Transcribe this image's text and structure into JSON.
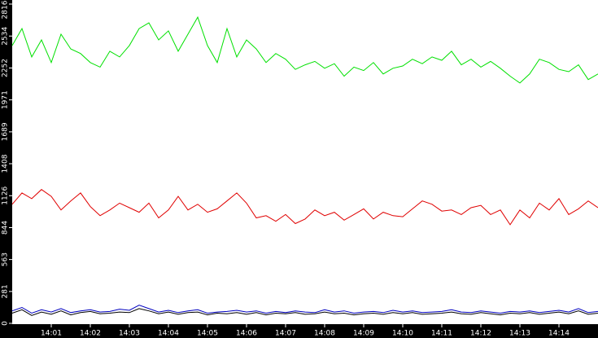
{
  "chart_data": {
    "type": "line",
    "x": [
      0,
      0.25,
      0.5,
      0.75,
      1,
      1.25,
      1.5,
      1.75,
      2,
      2.25,
      2.5,
      2.75,
      3,
      3.25,
      3.5,
      3.75,
      4,
      4.25,
      4.5,
      4.75,
      5,
      5.25,
      5.5,
      5.75,
      6,
      6.25,
      6.5,
      6.75,
      7,
      7.25,
      7.5,
      7.75,
      8,
      8.25,
      8.5,
      8.75,
      9,
      9.25,
      9.5,
      9.75,
      10,
      10.25,
      10.5,
      10.75,
      11,
      11.25,
      11.5,
      11.75,
      12,
      12.25,
      12.5,
      12.75,
      13,
      13.25,
      13.5,
      13.75,
      14,
      14.25,
      14.5,
      14.75,
      15
    ],
    "series": [
      {
        "color": "#00e000",
        "values": [
          2450,
          2600,
          2350,
          2500,
          2300,
          2550,
          2420,
          2380,
          2300,
          2260,
          2400,
          2350,
          2450,
          2600,
          2650,
          2500,
          2580,
          2400,
          2550,
          2700,
          2450,
          2300,
          2600,
          2350,
          2500,
          2420,
          2300,
          2380,
          2330,
          2240,
          2280,
          2310,
          2250,
          2290,
          2180,
          2260,
          2230,
          2300,
          2200,
          2250,
          2270,
          2330,
          2290,
          2350,
          2320,
          2400,
          2280,
          2330,
          2260,
          2310,
          2250,
          2180,
          2120,
          2200,
          2330,
          2300,
          2240,
          2220,
          2280,
          2150,
          2200
        ]
      },
      {
        "color": "#e00000",
        "values": [
          1050,
          1150,
          1100,
          1180,
          1120,
          1000,
          1080,
          1150,
          1030,
          950,
          1000,
          1060,
          1020,
          980,
          1060,
          930,
          1000,
          1120,
          1000,
          1050,
          980,
          1010,
          1080,
          1150,
          1060,
          930,
          950,
          900,
          960,
          880,
          920,
          1000,
          950,
          980,
          910,
          960,
          1010,
          920,
          980,
          950,
          940,
          1010,
          1080,
          1050,
          990,
          1000,
          960,
          1020,
          1040,
          960,
          1000,
          870,
          1000,
          930,
          1060,
          1000,
          1100,
          960,
          1010,
          1080,
          1020
        ]
      },
      {
        "color": "#0000c0",
        "values": [
          110,
          140,
          90,
          120,
          100,
          130,
          95,
          110,
          120,
          100,
          105,
          125,
          115,
          160,
          130,
          100,
          115,
          95,
          110,
          120,
          90,
          100,
          105,
          115,
          100,
          110,
          90,
          105,
          95,
          110,
          100,
          95,
          120,
          100,
          110,
          90,
          100,
          105,
          95,
          115,
          100,
          110,
          95,
          100,
          105,
          120,
          100,
          95,
          110,
          100,
          90,
          105,
          100,
          110,
          95,
          105,
          115,
          100,
          130,
          95,
          105
        ]
      },
      {
        "color": "#000000",
        "values": [
          90,
          120,
          70,
          100,
          80,
          110,
          75,
          95,
          105,
          85,
          90,
          100,
          95,
          130,
          110,
          85,
          100,
          80,
          95,
          100,
          75,
          90,
          85,
          95,
          80,
          95,
          75,
          90,
          85,
          95,
          80,
          85,
          100,
          85,
          90,
          75,
          85,
          90,
          80,
          95,
          85,
          95,
          80,
          85,
          90,
          100,
          85,
          80,
          95,
          85,
          75,
          90,
          85,
          95,
          80,
          90,
          100,
          85,
          110,
          80,
          90
        ]
      }
    ],
    "xlim": [
      0,
      15
    ],
    "xticks": [
      {
        "value": 1,
        "label": "14:01"
      },
      {
        "value": 2,
        "label": "14:02"
      },
      {
        "value": 3,
        "label": "14:03"
      },
      {
        "value": 4,
        "label": "14:04"
      },
      {
        "value": 5,
        "label": "14:05"
      },
      {
        "value": 6,
        "label": "14:06"
      },
      {
        "value": 7,
        "label": "14:07"
      },
      {
        "value": 8,
        "label": "14:08"
      },
      {
        "value": 9,
        "label": "14:09"
      },
      {
        "value": 10,
        "label": "14:10"
      },
      {
        "value": 11,
        "label": "14:11"
      },
      {
        "value": 12,
        "label": "14:12"
      },
      {
        "value": 13,
        "label": "14:13"
      },
      {
        "value": 14,
        "label": "14:14"
      }
    ],
    "ylim": [
      0,
      2816
    ],
    "yticks": [
      0,
      281,
      563,
      844,
      1126,
      1408,
      1689,
      1971,
      2252,
      2534,
      2816
    ]
  }
}
